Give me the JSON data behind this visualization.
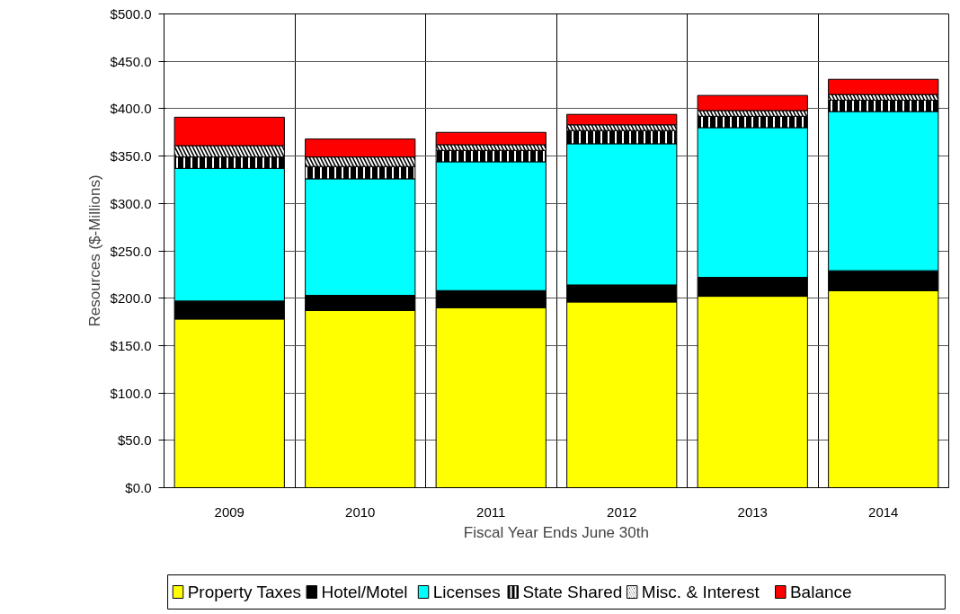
{
  "chart_data": {
    "type": "bar",
    "stacked": true,
    "xlabel": "Fiscal Year Ends June 30th",
    "ylabel": "Resources ($-Millions)",
    "categories": [
      "2009",
      "2010",
      "2011",
      "2012",
      "2013",
      "2014"
    ],
    "series": [
      {
        "name": "Property Taxes",
        "color": "#ffff00",
        "values": [
          178,
          187,
          190,
          196,
          202,
          208
        ]
      },
      {
        "name": "Hotel/Motel",
        "color": "#000000",
        "values": [
          19,
          16,
          18,
          18,
          20,
          21
        ]
      },
      {
        "name": "Licenses",
        "color": "#00ffff",
        "values": [
          140,
          123,
          136,
          149,
          158,
          168
        ]
      },
      {
        "name": "State Shared",
        "color": "#000000",
        "values": [
          12,
          13,
          12,
          14,
          12,
          12
        ]
      },
      {
        "name": "Misc. & Interest",
        "color": "#000000",
        "values": [
          12,
          10,
          6,
          6,
          6,
          6
        ]
      },
      {
        "name": "Balance",
        "color": "#ff0000",
        "values": [
          30,
          19,
          13,
          11,
          16,
          16
        ]
      }
    ],
    "ylim": [
      0,
      500
    ],
    "yticks": [
      {
        "value": 0,
        "label": "$0.0"
      },
      {
        "value": 50,
        "label": "$50.0"
      },
      {
        "value": 100,
        "label": "$100.0"
      },
      {
        "value": 150,
        "label": "$150.0"
      },
      {
        "value": 200,
        "label": "$200.0"
      },
      {
        "value": 250,
        "label": "$250.0"
      },
      {
        "value": 300,
        "label": "$300.0"
      },
      {
        "value": 350,
        "label": "$350.0"
      },
      {
        "value": 400,
        "label": "$400.0"
      },
      {
        "value": 450,
        "label": "$450.0"
      },
      {
        "value": 500,
        "label": "$500.0"
      }
    ],
    "grid": true,
    "legend": "bottom"
  }
}
